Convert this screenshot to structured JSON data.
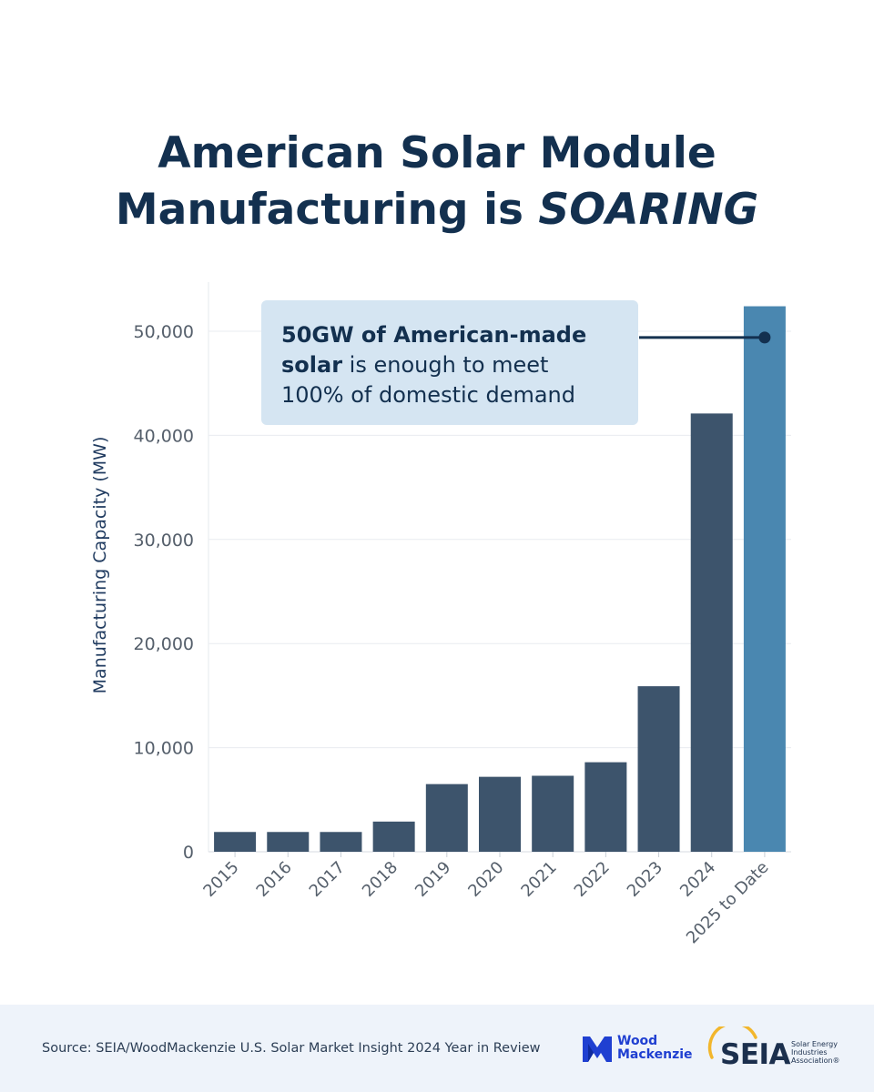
{
  "title": {
    "line1": "American Solar Module",
    "line2_prefix": "Manufacturing is ",
    "line2_emphasis": "SOARING"
  },
  "callout": {
    "bold_1": "50GW of American-made",
    "bold_2": "solar",
    "rest_2": " is enough to meet",
    "line_3": "100% of domestic demand"
  },
  "chart_data": {
    "type": "bar",
    "title": "American Solar Module Manufacturing is SOARING",
    "xlabel": "",
    "ylabel": "Manufacturing Capacity (MW)",
    "ylim": [
      0,
      55000
    ],
    "yticks": [
      0,
      10000,
      20000,
      30000,
      40000,
      50000
    ],
    "ytick_labels": [
      "0",
      "10,000",
      "20,000",
      "30,000",
      "40,000",
      "50,000"
    ],
    "categories": [
      "2015",
      "2016",
      "2017",
      "2018",
      "2019",
      "2020",
      "2021",
      "2022",
      "2023",
      "2024",
      "2025 to Date"
    ],
    "values": [
      1900,
      1900,
      1900,
      2900,
      6500,
      7200,
      7300,
      8600,
      15900,
      42100,
      52400
    ],
    "grid": true,
    "colors": {
      "bar": "#3d546c",
      "highlight": "#4a87b0",
      "axis_text": "#555f6b",
      "ylabel": "#1f3a5f",
      "marker": "#13304f"
    },
    "highlight_index": 10,
    "annotation_marker_value": 49400
  },
  "footer": {
    "source": "Source: SEIA/WoodMackenzie U.S. Solar Market Insight 2024 Year in Review",
    "woodmac_line1": "Wood",
    "woodmac_line2": "Mackenzie",
    "seia_name": "SEIA",
    "seia_small_1": "Solar Energy",
    "seia_small_2": "Industries",
    "seia_small_3": "Association®"
  }
}
